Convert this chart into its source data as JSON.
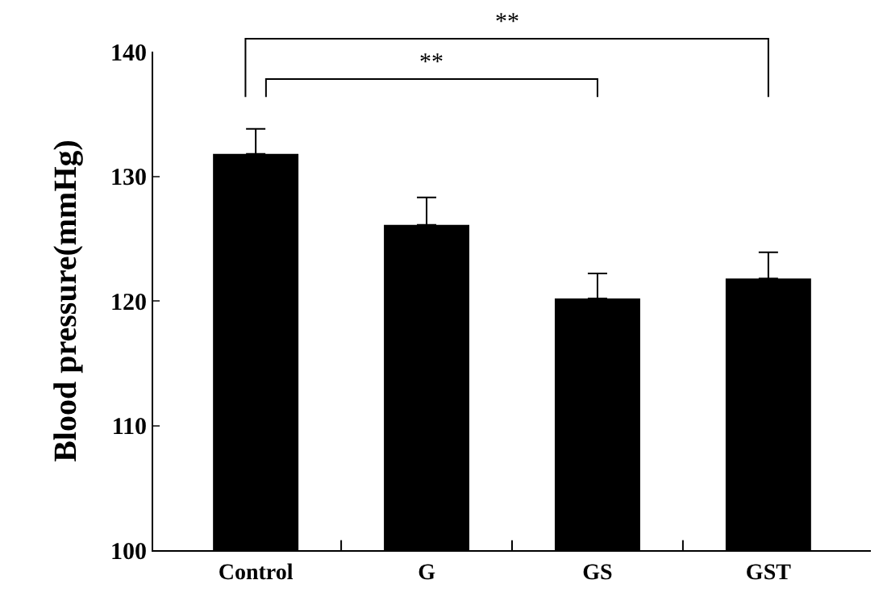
{
  "chart_data": {
    "type": "bar",
    "ylabel": "Blood pressure(mmHg)",
    "categories": [
      "Control",
      "G",
      "GS",
      "GST"
    ],
    "values": [
      131.8,
      126.1,
      120.2,
      121.8
    ],
    "errors": [
      [
        131.8,
        133.8
      ],
      [
        126.1,
        128.3
      ],
      [
        120.2,
        122.2
      ],
      [
        121.8,
        123.9
      ]
    ],
    "color": "#000000",
    "ylim": [
      100,
      140
    ],
    "yticks": [
      100,
      110,
      120,
      130,
      140
    ],
    "legend": false,
    "annotations": [
      "**",
      "**"
    ]
  }
}
